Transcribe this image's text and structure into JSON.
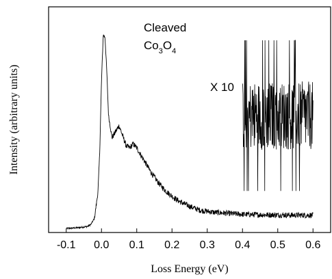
{
  "chart_data": {
    "type": "line",
    "title": "",
    "xlabel": "Loss Energy (eV)",
    "ylabel": "Intensity (arbitrary units)",
    "xlim": [
      -0.15,
      0.65
    ],
    "ylim": [
      0,
      1.12
    ],
    "grid": false,
    "x_ticks": [
      -0.1,
      0,
      0.1,
      0.2,
      0.3,
      0.4,
      0.5,
      0.6
    ],
    "x_tick_labels": [
      "-0.1",
      "0.0",
      "0.1",
      "0.2",
      "0.3",
      "0.4",
      "0.5",
      "0.6"
    ],
    "annotations": {
      "sample_line1": "Cleaved",
      "formula": {
        "base1": "Co",
        "sub1": "3",
        "base2": "O",
        "sub2": "4"
      },
      "magnification": "X 10"
    },
    "series": [
      {
        "values": [
          [
            -0.1,
            0.02
          ],
          [
            -0.08,
            0.022
          ],
          [
            -0.06,
            0.025
          ],
          [
            -0.04,
            0.03
          ],
          [
            -0.03,
            0.04
          ],
          [
            -0.02,
            0.07
          ],
          [
            -0.01,
            0.2
          ],
          [
            -0.005,
            0.4
          ],
          [
            0.0,
            0.75
          ],
          [
            0.005,
            0.98
          ],
          [
            0.01,
            0.97
          ],
          [
            0.015,
            0.8
          ],
          [
            0.02,
            0.58
          ],
          [
            0.03,
            0.47
          ],
          [
            0.04,
            0.5
          ],
          [
            0.05,
            0.53
          ],
          [
            0.06,
            0.48
          ],
          [
            0.07,
            0.43
          ],
          [
            0.08,
            0.42
          ],
          [
            0.09,
            0.44
          ],
          [
            0.1,
            0.42
          ],
          [
            0.12,
            0.36
          ],
          [
            0.14,
            0.3
          ],
          [
            0.16,
            0.25
          ],
          [
            0.18,
            0.21
          ],
          [
            0.2,
            0.18
          ],
          [
            0.22,
            0.155
          ],
          [
            0.25,
            0.13
          ],
          [
            0.28,
            0.11
          ],
          [
            0.32,
            0.1
          ],
          [
            0.36,
            0.095
          ],
          [
            0.4,
            0.09
          ],
          [
            0.45,
            0.088
          ],
          [
            0.5,
            0.087
          ],
          [
            0.55,
            0.086
          ],
          [
            0.6,
            0.086
          ]
        ]
      },
      {
        "name": "X 10",
        "x_range": [
          0.4,
          0.6
        ],
        "mean": 0.58,
        "spread": 0.17
      }
    ]
  }
}
